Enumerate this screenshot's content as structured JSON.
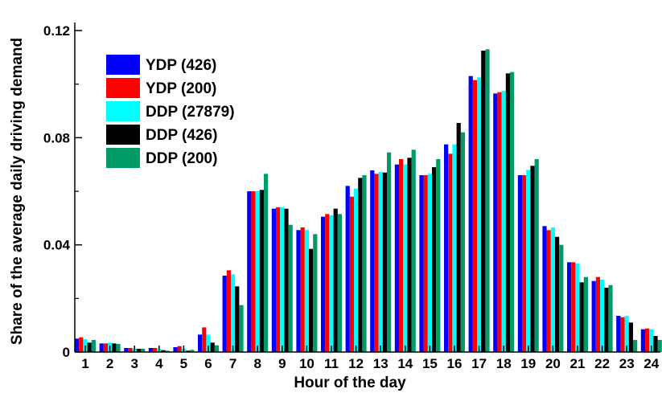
{
  "chart_data": {
    "type": "bar",
    "xlabel": "Hour of the day",
    "ylabel": "Share of the average daily driving demand",
    "ylim": [
      0,
      0.12
    ],
    "yticks": [
      "0",
      "0.04",
      "0.08",
      "0.12"
    ],
    "grid": false,
    "legend_position": "top-left",
    "categories": [
      "1",
      "2",
      "3",
      "4",
      "5",
      "6",
      "7",
      "8",
      "9",
      "10",
      "11",
      "12",
      "13",
      "14",
      "15",
      "16",
      "17",
      "18",
      "19",
      "20",
      "21",
      "22",
      "23",
      "24"
    ],
    "series": [
      {
        "name": "YDP (426)",
        "color": "#0000ff",
        "values": [
          0.005,
          0.0032,
          0.0015,
          0.0015,
          0.0018,
          0.0065,
          0.0285,
          0.06,
          0.0535,
          0.0455,
          0.0505,
          0.062,
          0.0678,
          0.07,
          0.066,
          0.0775,
          0.103,
          0.0965,
          0.066,
          0.047,
          0.0335,
          0.0265,
          0.0135,
          0.0085
        ]
      },
      {
        "name": "YDP (200)",
        "color": "#ff0000",
        "values": [
          0.0055,
          0.0032,
          0.0015,
          0.0015,
          0.0022,
          0.0092,
          0.0305,
          0.06,
          0.054,
          0.0465,
          0.0515,
          0.058,
          0.0665,
          0.072,
          0.066,
          0.074,
          0.1015,
          0.097,
          0.066,
          0.0455,
          0.0335,
          0.028,
          0.013,
          0.0088
        ]
      },
      {
        "name": "DDP (27879)",
        "color": "#00ffff",
        "values": [
          0.0048,
          0.0035,
          0.0013,
          0.0013,
          0.0012,
          0.0065,
          0.029,
          0.06,
          0.054,
          0.0455,
          0.051,
          0.061,
          0.0672,
          0.07,
          0.0665,
          0.0775,
          0.1025,
          0.0975,
          0.068,
          0.0465,
          0.033,
          0.027,
          0.0135,
          0.0085
        ]
      },
      {
        "name": "DDP (426)",
        "color": "#000000",
        "values": [
          0.0035,
          0.0032,
          0.0012,
          0.0007,
          0.0005,
          0.0035,
          0.0245,
          0.0605,
          0.0535,
          0.0385,
          0.0535,
          0.065,
          0.067,
          0.0725,
          0.069,
          0.0855,
          0.1125,
          0.104,
          0.0695,
          0.043,
          0.026,
          0.024,
          0.011,
          0.006
        ]
      },
      {
        "name": "DDP (200)",
        "color": "#009a66",
        "values": [
          0.0045,
          0.003,
          0.0012,
          0.0005,
          0.0008,
          0.0025,
          0.0175,
          0.0665,
          0.0475,
          0.044,
          0.0515,
          0.066,
          0.0745,
          0.0755,
          0.072,
          0.082,
          0.113,
          0.1045,
          0.072,
          0.04,
          0.028,
          0.025,
          0.0045,
          0.0045
        ]
      }
    ]
  }
}
